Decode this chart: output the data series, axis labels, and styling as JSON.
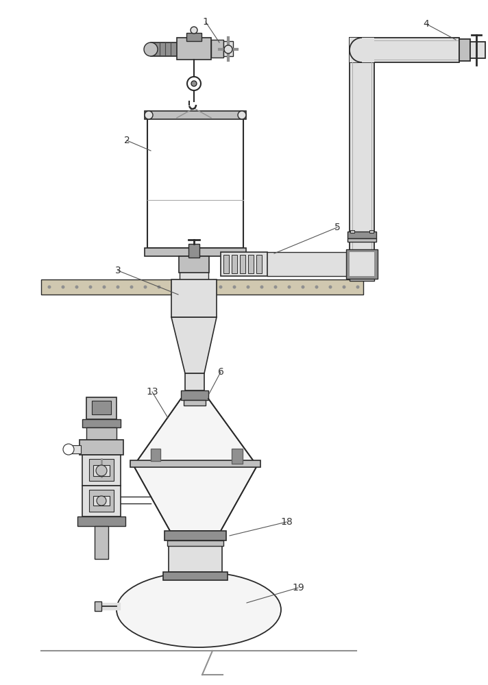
{
  "bg_color": "#ffffff",
  "line_color": "#2a2a2a",
  "fill_color": "#f5f5f5",
  "gray1": "#e0e0e0",
  "gray2": "#c0c0c0",
  "gray3": "#909090",
  "gray4": "#606060",
  "concrete": "#d0c8b0"
}
